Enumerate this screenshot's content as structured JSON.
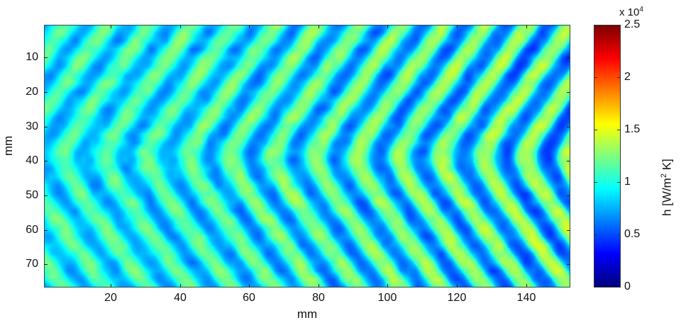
{
  "chart_data": {
    "type": "heatmap",
    "title": "",
    "xlabel": "mm",
    "ylabel": "mm",
    "xlim": [
      0.7,
      152.8
    ],
    "ylim": [
      0.5,
      76.7
    ],
    "y_reversed": true,
    "x_ticks": [
      20,
      40,
      60,
      80,
      100,
      120,
      140
    ],
    "y_ticks": [
      10,
      20,
      30,
      40,
      50,
      60,
      70
    ],
    "colorbar": {
      "label": "h [W/m^2 K]",
      "label_base": "h [W/m",
      "label_sup": "2",
      "label_tail": " K]",
      "scale": "x 10^4",
      "scale_base": "x 10",
      "scale_sup": "4",
      "range": [
        0,
        2.5
      ],
      "ticks": [
        "0",
        "0.5",
        "1",
        "1.5",
        "2",
        "2.5"
      ],
      "tick_values": [
        0,
        0.5,
        1,
        1.5,
        2,
        2.5
      ],
      "colormap": "jet"
    },
    "pattern": {
      "description": "Chevron (V-shaped) stripes of heat transfer coefficient pointing left, apex near y=40 mm; ~13 stripes across x; amplitude increasing from left (~0.6-1.2e4) to right (~0.4-1.6e4)",
      "stripe_period_mm": 12.2,
      "chevron_apex_y_mm": 39,
      "chevron_slope": 0.72,
      "min_value": 0.45,
      "mean_value": 0.95,
      "max_value_left": 1.25,
      "max_value_right": 1.65
    },
    "grid": false,
    "legend": "none"
  }
}
